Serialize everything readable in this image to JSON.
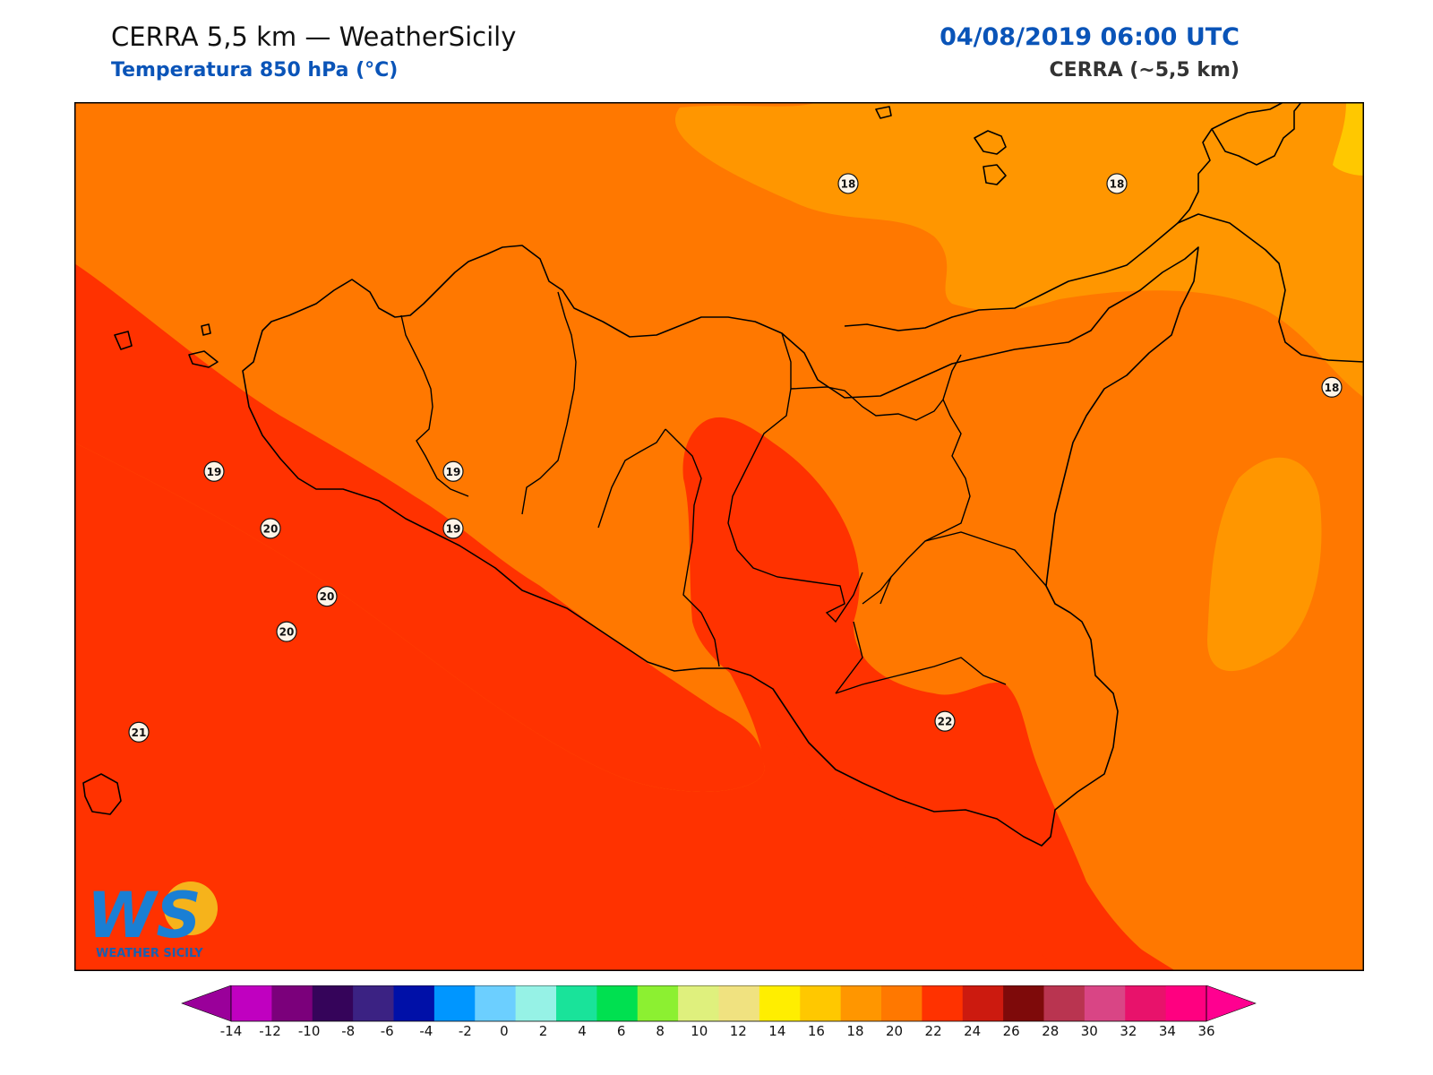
{
  "header": {
    "title": "CERRA 5,5 km — WeatherSicily",
    "subtitle": "Temperatura 850 hPa (°C)",
    "datetime": "04/08/2019 06:00 UTC",
    "model": "CERRA (~5,5 km)"
  },
  "logo": {
    "text": "WS",
    "subtext": "WEATHER SICILY"
  },
  "colorbar": {
    "ticks": [
      "-14",
      "-12",
      "-10",
      "-8",
      "-6",
      "-4",
      "-2",
      "0",
      "2",
      "4",
      "6",
      "8",
      "10",
      "12",
      "14",
      "16",
      "18",
      "20",
      "22",
      "24",
      "26",
      "28",
      "30",
      "32",
      "34",
      "36"
    ],
    "colors": [
      "#c000c0",
      "#7b007b",
      "#35045a",
      "#3b2283",
      "#0010a8",
      "#0096ff",
      "#6ccfff",
      "#96f2e6",
      "#19e39a",
      "#00e050",
      "#8cf031",
      "#dff07d",
      "#f0e280",
      "#ffee00",
      "#ffc800",
      "#ff9600",
      "#ff7800",
      "#ff3200",
      "#cc1a0f",
      "#7e0a0a",
      "#b93450",
      "#d94585",
      "#e8126b",
      "#ff0080"
    ],
    "under_color": "#9a009a",
    "over_color": "#ff0090"
  },
  "map_labels": [
    {
      "v": "18",
      "lon": 14.68,
      "lat": 39.2
    },
    {
      "v": "18",
      "lon": 15.68,
      "lat": 39.2
    },
    {
      "v": "18",
      "lon": 16.48,
      "lat": 38.45
    },
    {
      "v": "19",
      "lon": 12.32,
      "lat": 38.14
    },
    {
      "v": "19",
      "lon": 13.21,
      "lat": 38.14
    },
    {
      "v": "19",
      "lon": 13.21,
      "lat": 37.93
    },
    {
      "v": "20",
      "lon": 12.53,
      "lat": 37.93
    },
    {
      "v": "20",
      "lon": 12.74,
      "lat": 37.68
    },
    {
      "v": "20",
      "lon": 12.59,
      "lat": 37.55
    },
    {
      "v": "21",
      "lon": 12.04,
      "lat": 37.18
    },
    {
      "v": "22",
      "lon": 15.04,
      "lat": 37.22
    }
  ]
}
